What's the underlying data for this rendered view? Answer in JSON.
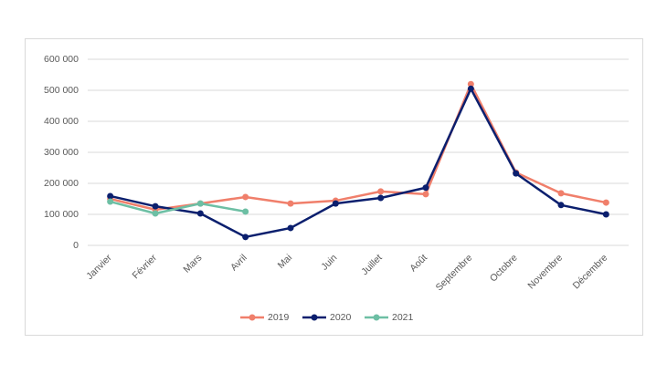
{
  "chart_data": {
    "type": "line",
    "categories": [
      "Janvier",
      "Février",
      "Mars",
      "Avril",
      "Mai",
      "Juin",
      "Juillet",
      "Août",
      "Septembre",
      "Octobre",
      "Novembre",
      "Décembre"
    ],
    "series": [
      {
        "name": "2019",
        "color": "#f07f6b",
        "values": [
          150000,
          115000,
          135000,
          156000,
          135000,
          144000,
          174000,
          165000,
          520000,
          235000,
          168000,
          138000
        ]
      },
      {
        "name": "2020",
        "color": "#0b1f6e",
        "values": [
          159000,
          126000,
          103000,
          27000,
          56000,
          135000,
          153000,
          186000,
          505000,
          232000,
          130000,
          100000
        ]
      },
      {
        "name": "2021",
        "color": "#6dbfa4",
        "values": [
          141000,
          103000,
          135000,
          109000,
          null,
          null,
          null,
          null,
          null,
          null,
          null,
          null
        ]
      }
    ],
    "ylim": [
      0,
      600000
    ],
    "yticks": [
      {
        "value": 0,
        "label": "0"
      },
      {
        "value": 100000,
        "label": "100 000"
      },
      {
        "value": 200000,
        "label": "200 000"
      },
      {
        "value": 300000,
        "label": "300 000"
      },
      {
        "value": 400000,
        "label": "400 000"
      },
      {
        "value": 500000,
        "label": "500 000"
      },
      {
        "value": 600000,
        "label": "600 000"
      }
    ],
    "grid": true,
    "legend": "bottom"
  }
}
